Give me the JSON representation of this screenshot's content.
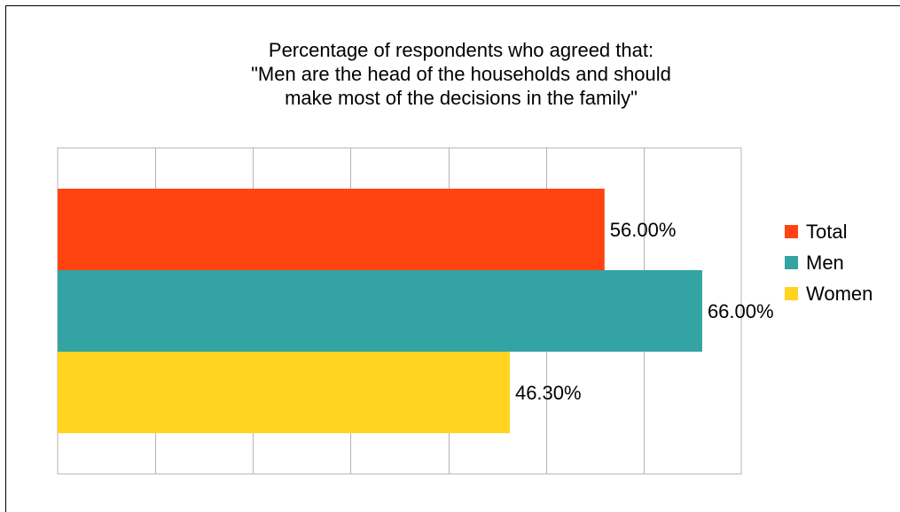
{
  "chart_data": {
    "type": "bar",
    "orientation": "horizontal",
    "title_lines": [
      "Percentage of respondents who agreed that:",
      "\"Men are the head of the households and should",
      "make most of the decisions in the family\""
    ],
    "xlim": [
      0,
      70
    ],
    "x_grid_step": 10,
    "grid": true,
    "legend_position": "right",
    "series": [
      {
        "name": "Total",
        "value": 56.0,
        "label": "56.00%",
        "color": "#ff4411"
      },
      {
        "name": "Men",
        "value": 66.0,
        "label": "66.00%",
        "color": "#33a3a3"
      },
      {
        "name": "Women",
        "value": 46.3,
        "label": "46.30%",
        "color": "#ffd320"
      }
    ]
  }
}
